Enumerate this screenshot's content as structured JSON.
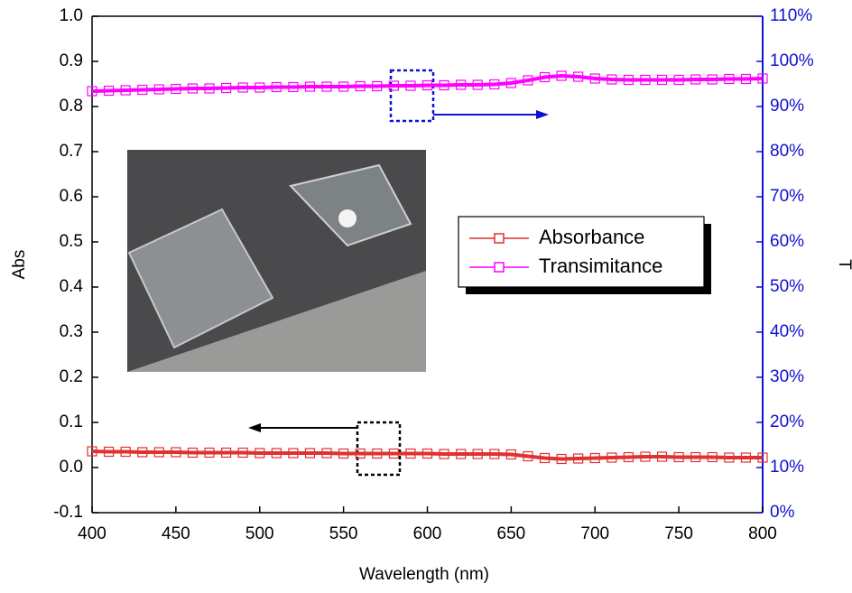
{
  "chart_data": {
    "type": "line",
    "xlabel": "Wavelength (nm)",
    "ylabel": "Abs",
    "y2label": "T",
    "x": [
      400,
      410,
      420,
      430,
      440,
      450,
      460,
      470,
      480,
      490,
      500,
      510,
      520,
      530,
      540,
      550,
      560,
      570,
      580,
      590,
      600,
      610,
      620,
      630,
      640,
      650,
      660,
      670,
      680,
      690,
      700,
      710,
      720,
      730,
      740,
      750,
      760,
      770,
      780,
      790,
      800
    ],
    "series": [
      {
        "name": "Absorbance",
        "color": "#e03030",
        "values": [
          0.036,
          0.035,
          0.035,
          0.034,
          0.034,
          0.034,
          0.033,
          0.033,
          0.033,
          0.033,
          0.032,
          0.032,
          0.032,
          0.032,
          0.032,
          0.031,
          0.031,
          0.031,
          0.031,
          0.031,
          0.031,
          0.03,
          0.03,
          0.03,
          0.03,
          0.029,
          0.025,
          0.021,
          0.019,
          0.02,
          0.021,
          0.022,
          0.023,
          0.024,
          0.024,
          0.023,
          0.023,
          0.023,
          0.022,
          0.022,
          0.022
        ]
      },
      {
        "name": "Transimitance",
        "color": "#ff00ff",
        "axis": "y2",
        "values": [
          93.4,
          93.5,
          93.6,
          93.7,
          93.8,
          93.9,
          94.0,
          94.0,
          94.1,
          94.2,
          94.2,
          94.3,
          94.3,
          94.4,
          94.4,
          94.4,
          94.5,
          94.5,
          94.6,
          94.6,
          94.7,
          94.7,
          94.8,
          94.8,
          94.9,
          95.2,
          95.8,
          96.5,
          96.8,
          96.6,
          96.2,
          96.0,
          95.9,
          95.9,
          95.9,
          95.9,
          96.0,
          96.0,
          96.1,
          96.1,
          96.2
        ]
      }
    ],
    "xlim": [
      400,
      800
    ],
    "xticks": [
      400,
      450,
      500,
      550,
      600,
      650,
      700,
      750,
      800
    ],
    "ylim": [
      -0.1,
      1.0
    ],
    "yticks": [
      -0.1,
      {
        "value": 0,
        "label": "0.0"
      },
      0.1,
      0.2,
      0.3,
      0.4,
      0.5,
      0.6,
      0.7,
      0.8,
      0.9,
      {
        "value": 1,
        "label": "1.0"
      }
    ],
    "y2lim": [
      0,
      110
    ],
    "y2ticks": [
      {
        "value": 0,
        "label": "0%"
      },
      {
        "value": 10,
        "label": "10%"
      },
      {
        "value": 20,
        "label": "20%"
      },
      {
        "value": 30,
        "label": "30%"
      },
      {
        "value": 40,
        "label": "40%"
      },
      {
        "value": 50,
        "label": "50%"
      },
      {
        "value": 60,
        "label": "60%"
      },
      {
        "value": 70,
        "label": "70%"
      },
      {
        "value": 80,
        "label": "80%"
      },
      {
        "value": 90,
        "label": "90%"
      },
      {
        "value": 100,
        "label": "100%"
      },
      {
        "value": 110,
        "label": "110%"
      }
    ],
    "y2_color": "#1010d0",
    "legend": "right"
  }
}
